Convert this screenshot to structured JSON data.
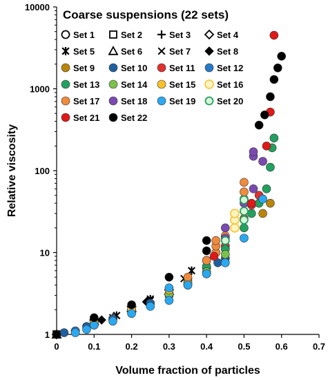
{
  "chart_data": {
    "type": "scatter",
    "title": "Coarse suspensions (22 sets)",
    "xlabel": "Volume fraction of particles",
    "ylabel": "Relative viscosity",
    "xlim": [
      0,
      0.7
    ],
    "ylim": [
      1,
      10000
    ],
    "yscale": "log",
    "x_ticks": [
      "0",
      "0.1",
      "0.2",
      "0.3",
      "0.4",
      "0.5",
      "0.6",
      "0.7"
    ],
    "y_ticks": [
      "1",
      "10",
      "100",
      "1000",
      "10000"
    ],
    "grid": false,
    "legend_position": "top-left, inside plot",
    "series": [
      {
        "name": "Set 1",
        "marker": "open-circle",
        "color": "#000000",
        "points": [
          [
            0.0,
            1.0
          ],
          [
            0.05,
            1.1
          ],
          [
            0.1,
            1.4
          ],
          [
            0.2,
            2.0
          ]
        ]
      },
      {
        "name": "Set 2",
        "marker": "open-square",
        "color": "#000000",
        "points": [
          [
            0.0,
            1.0
          ],
          [
            0.1,
            1.45
          ],
          [
            0.2,
            2.1
          ],
          [
            0.3,
            3.3
          ]
        ]
      },
      {
        "name": "Set 3",
        "marker": "plus",
        "color": "#000000",
        "points": [
          [
            0.0,
            1.0
          ],
          [
            0.15,
            1.6
          ],
          [
            0.25,
            2.5
          ],
          [
            0.35,
            4.5
          ]
        ]
      },
      {
        "name": "Set 4",
        "marker": "open-diamond",
        "color": "#000000",
        "points": [
          [
            0.0,
            1.0
          ],
          [
            0.1,
            1.5
          ],
          [
            0.2,
            2.2
          ],
          [
            0.3,
            3.5
          ]
        ]
      },
      {
        "name": "Set 5",
        "marker": "asterisk",
        "color": "#000000",
        "points": [
          [
            0.0,
            1.0
          ],
          [
            0.16,
            1.7
          ],
          [
            0.25,
            2.7
          ],
          [
            0.36,
            6.0
          ]
        ]
      },
      {
        "name": "Set 6",
        "marker": "open-triangle",
        "color": "#000000",
        "points": [
          [
            0.0,
            1.0
          ],
          [
            0.1,
            1.45
          ],
          [
            0.2,
            2.1
          ],
          [
            0.3,
            3.4
          ]
        ]
      },
      {
        "name": "Set 7",
        "marker": "x",
        "color": "#000000",
        "points": [
          [
            0.0,
            1.0
          ],
          [
            0.15,
            1.6
          ],
          [
            0.25,
            2.6
          ],
          [
            0.34,
            4.8
          ]
        ]
      },
      {
        "name": "Set 8",
        "marker": "filled-diamond",
        "color": "#000000",
        "points": [
          [
            0.0,
            1.0
          ],
          [
            0.12,
            1.5
          ],
          [
            0.24,
            2.5
          ],
          [
            0.35,
            4.8
          ]
        ]
      },
      {
        "name": "Set 9",
        "marker": "filled-circle",
        "color": "#b8860b",
        "points": [
          [
            0.5,
            45
          ],
          [
            0.55,
            30
          ],
          [
            0.57,
            40
          ]
        ]
      },
      {
        "name": "Set 10",
        "marker": "filled-circle",
        "color": "#1f5f9f",
        "points": [
          [
            0.02,
            1.05
          ],
          [
            0.08,
            1.25
          ],
          [
            0.15,
            1.55
          ],
          [
            0.2,
            1.9
          ],
          [
            0.25,
            2.4
          ],
          [
            0.3,
            3.0
          ],
          [
            0.35,
            4.2
          ],
          [
            0.4,
            6.5
          ],
          [
            0.43,
            7.5
          ],
          [
            0.45,
            8.5
          ]
        ]
      },
      {
        "name": "Set 11",
        "marker": "filled-circle",
        "color": "#e03030",
        "points": [
          [
            0.4,
            8.0
          ],
          [
            0.45,
            12
          ],
          [
            0.5,
            26
          ],
          [
            0.52,
            38
          ],
          [
            0.54,
            50
          ]
        ]
      },
      {
        "name": "Set 12",
        "marker": "filled-circle",
        "color": "#2878c8",
        "points": [
          [
            0.05,
            1.1
          ],
          [
            0.1,
            1.3
          ],
          [
            0.15,
            1.5
          ],
          [
            0.2,
            1.9
          ],
          [
            0.3,
            3.0
          ],
          [
            0.4,
            5.5
          ],
          [
            0.45,
            7.5
          ]
        ]
      },
      {
        "name": "Set 13",
        "marker": "filled-circle",
        "color": "#22a060",
        "points": [
          [
            0.3,
            3.5
          ],
          [
            0.35,
            4.5
          ],
          [
            0.4,
            6.8
          ],
          [
            0.45,
            11
          ],
          [
            0.5,
            20
          ],
          [
            0.52,
            30
          ],
          [
            0.54,
            40
          ],
          [
            0.56,
            60
          ],
          [
            0.57,
            110
          ],
          [
            0.575,
            190
          ],
          [
            0.58,
            250
          ]
        ]
      },
      {
        "name": "Set 14",
        "marker": "filled-circle",
        "color": "#7cc04c",
        "points": [
          [
            0.1,
            1.35
          ],
          [
            0.2,
            1.95
          ],
          [
            0.3,
            3.1
          ],
          [
            0.35,
            4.0
          ],
          [
            0.4,
            5.8
          ],
          [
            0.45,
            9.5
          ]
        ]
      },
      {
        "name": "Set 15",
        "marker": "filled-circle",
        "color": "#f8c02a",
        "points": [
          [
            0.1,
            1.4
          ],
          [
            0.2,
            2.0
          ],
          [
            0.3,
            3.5
          ],
          [
            0.35,
            4.2
          ]
        ]
      },
      {
        "name": "Set 16",
        "marker": "filled-circle",
        "color": "#f8c02a",
        "open_face": "#fff4c0",
        "points": [
          [
            0.475,
            20
          ],
          [
            0.475,
            25
          ],
          [
            0.475,
            30
          ]
        ]
      },
      {
        "name": "Set 17",
        "marker": "filled-circle",
        "color": "#f08a3c",
        "points": [
          [
            0.35,
            5.0
          ],
          [
            0.4,
            8.0
          ],
          [
            0.425,
            10
          ],
          [
            0.425,
            12
          ],
          [
            0.425,
            14
          ],
          [
            0.45,
            16
          ],
          [
            0.5,
            55
          ],
          [
            0.5,
            72
          ]
        ]
      },
      {
        "name": "Set 18",
        "marker": "filled-circle",
        "color": "#7a4ab0",
        "points": [
          [
            0.45,
            20
          ],
          [
            0.45,
            15
          ],
          [
            0.5,
            40
          ],
          [
            0.525,
            60
          ],
          [
            0.525,
            150
          ],
          [
            0.525,
            170
          ],
          [
            0.55,
            130
          ]
        ]
      },
      {
        "name": "Set 19",
        "marker": "filled-circle",
        "color": "#2aa8f0",
        "points": [
          [
            0.05,
            1.05
          ],
          [
            0.08,
            1.15
          ],
          [
            0.1,
            1.3
          ],
          [
            0.15,
            1.45
          ],
          [
            0.2,
            1.8
          ],
          [
            0.25,
            2.2
          ],
          [
            0.3,
            2.6
          ],
          [
            0.3,
            3.7
          ],
          [
            0.35,
            4.0
          ],
          [
            0.4,
            5.5
          ],
          [
            0.45,
            7.5
          ],
          [
            0.5,
            15
          ],
          [
            0.55,
            45
          ]
        ]
      },
      {
        "name": "Set 20",
        "marker": "open-circle",
        "color": "#22a060",
        "open_face": "#d8f5d8",
        "points": [
          [
            0.45,
            14
          ],
          [
            0.5,
            25
          ],
          [
            0.5,
            32
          ],
          [
            0.5,
            44
          ]
        ]
      },
      {
        "name": "Set 21",
        "marker": "filled-circle",
        "color": "#e01818",
        "points": [
          [
            0.42,
            9.0
          ],
          [
            0.52,
            40
          ],
          [
            0.56,
            200
          ],
          [
            0.57,
            520
          ],
          [
            0.58,
            4500
          ]
        ]
      },
      {
        "name": "Set 22",
        "marker": "filled-circle",
        "color": "#000000",
        "points": [
          [
            0.0,
            1.0
          ],
          [
            0.1,
            1.6
          ],
          [
            0.2,
            2.3
          ],
          [
            0.3,
            5.0
          ],
          [
            0.4,
            10.5
          ],
          [
            0.4,
            14
          ],
          [
            0.54,
            360
          ],
          [
            0.555,
            480
          ],
          [
            0.57,
            800
          ],
          [
            0.58,
            1300
          ],
          [
            0.59,
            1800
          ],
          [
            0.6,
            2500
          ]
        ]
      }
    ]
  }
}
